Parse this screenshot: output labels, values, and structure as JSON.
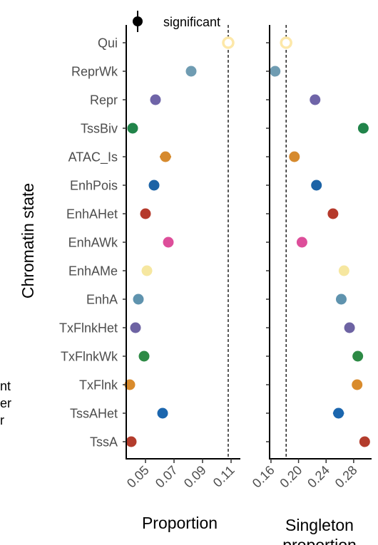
{
  "legend": {
    "significant_label": "significant"
  },
  "left_edge_fragments": [
    "nt",
    "er",
    "r"
  ],
  "chart_data": [
    {
      "type": "scatter",
      "ylabel": "Chromatin state",
      "xlabel": "Proportion",
      "categories": [
        "Qui",
        "ReprWk",
        "Repr",
        "TssBiv",
        "ATAC_Is",
        "EnhPois",
        "EnhAHet",
        "EnhAWk",
        "EnhAMe",
        "EnhA",
        "TxFlnkHet",
        "TxFlnkWk",
        "TxFlnk",
        "TssAHet",
        "TssA"
      ],
      "values": [
        0.108,
        0.082,
        0.057,
        0.041,
        0.064,
        0.056,
        0.05,
        0.066,
        0.051,
        0.045,
        0.043,
        0.049,
        0.039,
        0.062,
        0.04
      ],
      "error": [
        0.0006,
        0.0007,
        0.0007,
        0.0006,
        0.004,
        0.0009,
        0.0008,
        0.0008,
        0.0007,
        0.0007,
        0.0008,
        0.0008,
        0.0006,
        0.0014,
        0.0007
      ],
      "significant": [
        false,
        true,
        true,
        true,
        true,
        true,
        true,
        true,
        true,
        true,
        true,
        true,
        true,
        true,
        true
      ],
      "xticks": [
        0.05,
        0.07,
        0.09,
        0.11
      ],
      "xtick_labels": [
        "0.05",
        "0.07",
        "0.09",
        "0.11"
      ],
      "xlim": [
        0.0365,
        0.1165
      ],
      "reference_line": 0.108,
      "grid": false
    },
    {
      "type": "scatter",
      "xlabel": "Singleton proportion",
      "categories": [
        "Qui",
        "ReprWk",
        "Repr",
        "TssBiv",
        "ATAC_Is",
        "EnhPois",
        "EnhAHet",
        "EnhAWk",
        "EnhAMe",
        "EnhA",
        "TxFlnkHet",
        "TxFlnkWk",
        "TxFlnk",
        "TssAHet",
        "TssA"
      ],
      "values": [
        0.182,
        0.166,
        0.224,
        0.294,
        0.194,
        0.226,
        0.25,
        0.205,
        0.266,
        0.262,
        0.274,
        0.286,
        0.285,
        0.258,
        0.296
      ],
      "error": [
        0.0015,
        0.0015,
        0.002,
        0.007,
        0.002,
        0.0015,
        0.002,
        0.002,
        0.002,
        0.002,
        0.007,
        0.006,
        0.006,
        0.008,
        0.006
      ],
      "significant": [
        false,
        true,
        true,
        true,
        true,
        true,
        true,
        true,
        true,
        true,
        true,
        true,
        true,
        true,
        true
      ],
      "xticks": [
        0.16,
        0.2,
        0.24,
        0.28
      ],
      "xtick_labels": [
        "0.16",
        "0.20",
        "0.24",
        "0.28"
      ],
      "xlim": [
        0.158,
        0.306
      ],
      "reference_line": 0.182,
      "grid": false
    }
  ],
  "state_colors": {
    "Qui": "#fde8a9",
    "ReprWk": "#6f9cb2",
    "Repr": "#6f64a8",
    "TssBiv": "#21844a",
    "ATAC_Is": "#d68a2e",
    "EnhPois": "#1c63a6",
    "EnhAHet": "#b5392b",
    "EnhAWk": "#dd4e9a",
    "EnhAMe": "#f6e7a0",
    "EnhA": "#5f93ae",
    "TxFlnkHet": "#6d63a3",
    "TxFlnkWk": "#2d8a45",
    "TxFlnk": "#d98b2c",
    "TssAHet": "#1b66ae",
    "TssA": "#b33c2c"
  }
}
